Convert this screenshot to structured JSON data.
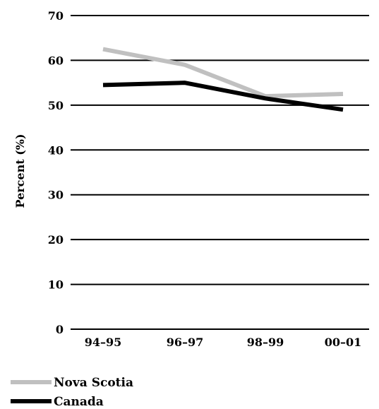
{
  "chart_data": {
    "type": "line",
    "categories": [
      "94–95",
      "96–97",
      "98–99",
      "00–01"
    ],
    "series": [
      {
        "name": "Nova Scotia",
        "values": [
          62.5,
          59,
          52,
          52.5
        ],
        "color": "#c0c0c0"
      },
      {
        "name": "Canada",
        "values": [
          54.5,
          55,
          51.5,
          49
        ],
        "color": "#000000"
      }
    ],
    "yticks": [
      0,
      10,
      20,
      30,
      40,
      50,
      60,
      70
    ],
    "ylim": [
      0,
      70
    ],
    "ylabel": "Percent (%)",
    "xlabel": "",
    "title": "",
    "grid": true,
    "legend_position": "bottom-left"
  }
}
